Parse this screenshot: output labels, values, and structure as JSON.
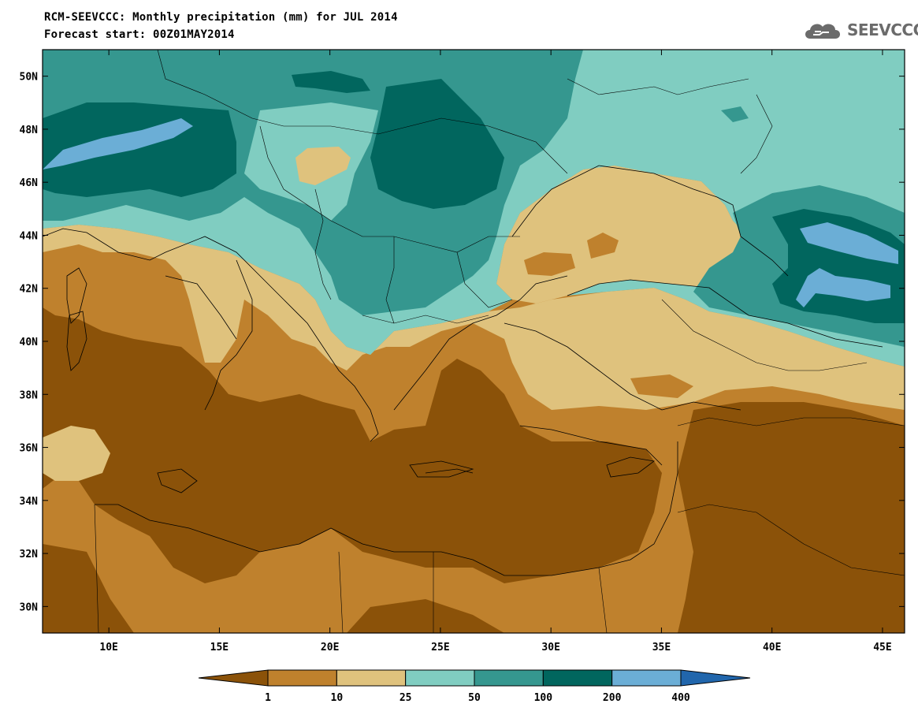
{
  "title": {
    "line1": "RCM-SEEVCCC: Monthly precipitation (mm) for JUL 2014",
    "line2": "Forecast start: 00Z01MAY2014"
  },
  "logo": {
    "text": "SEEVCCC",
    "icon": "cloud-icon"
  },
  "map": {
    "lon_range": [
      7,
      46
    ],
    "lat_range": [
      29,
      51
    ],
    "x_ticks": [
      "10E",
      "15E",
      "20E",
      "25E",
      "30E",
      "35E",
      "40E",
      "45E"
    ],
    "y_ticks": [
      "50N",
      "48N",
      "46N",
      "44N",
      "42N",
      "40N",
      "38N",
      "36N",
      "34N",
      "32N",
      "30N"
    ]
  },
  "legend": {
    "labels": [
      "1",
      "10",
      "25",
      "50",
      "100",
      "200",
      "400"
    ],
    "colors": [
      "#8b5209",
      "#bf812d",
      "#dfc27d",
      "#80cdc1",
      "#35978f",
      "#01665e",
      "#6baed6",
      "#2166ac"
    ]
  }
}
